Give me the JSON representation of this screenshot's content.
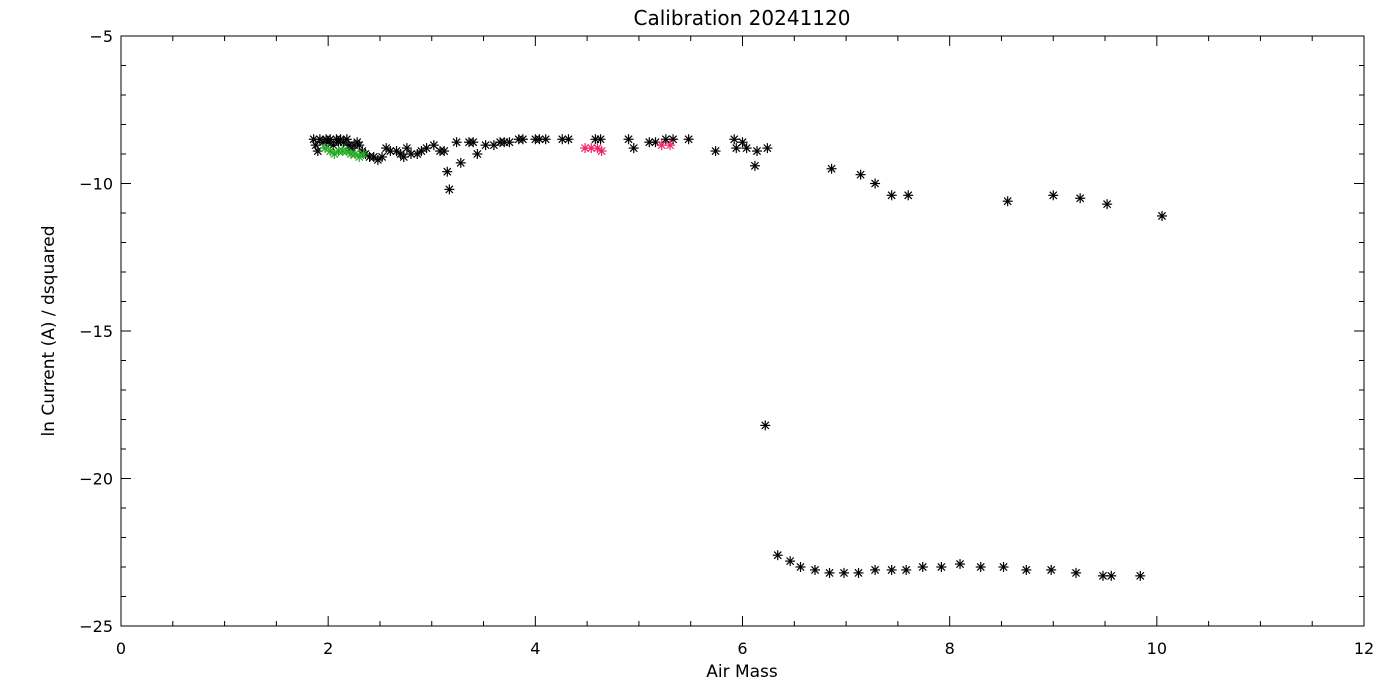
{
  "chart_data": {
    "type": "scatter",
    "title": "Calibration  20241120",
    "xlabel": "Air Mass",
    "ylabel": "ln Current (A) / dsquared",
    "xlim": [
      0,
      12
    ],
    "ylim": [
      -25,
      -5
    ],
    "x_ticks": [
      0,
      2,
      4,
      6,
      8,
      10,
      12
    ],
    "x_tick_labels": [
      "0",
      "2",
      "4",
      "6",
      "8",
      "10",
      "12"
    ],
    "y_ticks": [
      -25,
      -20,
      -15,
      -10,
      -5
    ],
    "y_tick_labels": [
      "−25",
      "−20",
      "−15",
      "−10",
      "−5"
    ],
    "x_minor_step": 0.5,
    "y_minor_step": 1,
    "grid": false,
    "marker": "asterisk",
    "series": [
      {
        "color": "#000000",
        "points": [
          [
            1.86,
            -8.5
          ],
          [
            1.88,
            -8.7
          ],
          [
            1.9,
            -8.9
          ],
          [
            1.92,
            -8.5
          ],
          [
            1.95,
            -8.6
          ],
          [
            1.98,
            -8.5
          ],
          [
            2.0,
            -8.6
          ],
          [
            2.02,
            -8.5
          ],
          [
            2.05,
            -8.7
          ],
          [
            2.08,
            -8.5
          ],
          [
            2.1,
            -8.6
          ],
          [
            2.12,
            -8.5
          ],
          [
            2.15,
            -8.6
          ],
          [
            2.18,
            -8.5
          ],
          [
            2.2,
            -8.7
          ],
          [
            2.22,
            -8.8
          ],
          [
            2.25,
            -8.7
          ],
          [
            2.28,
            -8.6
          ],
          [
            2.3,
            -8.7
          ],
          [
            2.33,
            -8.9
          ],
          [
            2.36,
            -9.0
          ],
          [
            2.4,
            -9.1
          ],
          [
            2.44,
            -9.1
          ],
          [
            2.48,
            -9.2
          ],
          [
            2.52,
            -9.1
          ],
          [
            2.56,
            -8.8
          ],
          [
            2.6,
            -8.9
          ],
          [
            2.66,
            -8.9
          ],
          [
            2.7,
            -9.0
          ],
          [
            2.73,
            -9.1
          ],
          [
            2.76,
            -8.8
          ],
          [
            2.8,
            -9.0
          ],
          [
            2.86,
            -9.0
          ],
          [
            2.9,
            -8.9
          ],
          [
            2.95,
            -8.8
          ],
          [
            3.02,
            -8.7
          ],
          [
            3.08,
            -8.9
          ],
          [
            3.12,
            -8.9
          ],
          [
            3.15,
            -9.6
          ],
          [
            3.17,
            -10.2
          ],
          [
            3.24,
            -8.6
          ],
          [
            3.28,
            -9.3
          ],
          [
            3.36,
            -8.6
          ],
          [
            3.4,
            -8.6
          ],
          [
            3.44,
            -9.0
          ],
          [
            3.52,
            -8.7
          ],
          [
            3.6,
            -8.7
          ],
          [
            3.66,
            -8.6
          ],
          [
            3.7,
            -8.6
          ],
          [
            3.75,
            -8.6
          ],
          [
            3.84,
            -8.5
          ],
          [
            3.88,
            -8.5
          ],
          [
            4.0,
            -8.5
          ],
          [
            4.04,
            -8.5
          ],
          [
            4.1,
            -8.5
          ],
          [
            4.26,
            -8.5
          ],
          [
            4.32,
            -8.5
          ],
          [
            4.58,
            -8.5
          ],
          [
            4.63,
            -8.5
          ],
          [
            4.9,
            -8.5
          ],
          [
            4.95,
            -8.8
          ],
          [
            5.1,
            -8.6
          ],
          [
            5.16,
            -8.6
          ],
          [
            5.26,
            -8.5
          ],
          [
            5.33,
            -8.5
          ],
          [
            5.48,
            -8.5
          ],
          [
            5.74,
            -8.9
          ],
          [
            5.92,
            -8.5
          ],
          [
            5.94,
            -8.8
          ],
          [
            6.0,
            -8.6
          ],
          [
            6.04,
            -8.8
          ],
          [
            6.12,
            -9.4
          ],
          [
            6.14,
            -8.9
          ],
          [
            6.24,
            -8.8
          ],
          [
            6.22,
            -18.2
          ],
          [
            6.86,
            -9.5
          ],
          [
            7.14,
            -9.7
          ],
          [
            7.28,
            -10.0
          ],
          [
            7.44,
            -10.4
          ],
          [
            7.6,
            -10.4
          ],
          [
            8.56,
            -10.6
          ],
          [
            9.0,
            -10.4
          ],
          [
            9.26,
            -10.5
          ],
          [
            9.52,
            -10.7
          ],
          [
            10.05,
            -11.1
          ],
          [
            6.34,
            -22.6
          ],
          [
            6.46,
            -22.8
          ],
          [
            6.56,
            -23.0
          ],
          [
            6.7,
            -23.1
          ],
          [
            6.84,
            -23.2
          ],
          [
            6.98,
            -23.2
          ],
          [
            7.12,
            -23.2
          ],
          [
            7.28,
            -23.1
          ],
          [
            7.44,
            -23.1
          ],
          [
            7.58,
            -23.1
          ],
          [
            7.74,
            -23.0
          ],
          [
            7.92,
            -23.0
          ],
          [
            8.1,
            -22.9
          ],
          [
            8.3,
            -23.0
          ],
          [
            8.52,
            -23.0
          ],
          [
            8.74,
            -23.1
          ],
          [
            8.98,
            -23.1
          ],
          [
            9.22,
            -23.2
          ],
          [
            9.48,
            -23.3
          ],
          [
            9.56,
            -23.3
          ],
          [
            9.84,
            -23.3
          ]
        ]
      },
      {
        "color": "#22aa22",
        "points": [
          [
            1.97,
            -8.8
          ],
          [
            2.02,
            -8.9
          ],
          [
            2.06,
            -9.0
          ],
          [
            2.1,
            -8.9
          ],
          [
            2.14,
            -8.9
          ],
          [
            2.18,
            -8.9
          ],
          [
            2.22,
            -9.0
          ],
          [
            2.26,
            -9.0
          ],
          [
            2.3,
            -9.1
          ],
          [
            2.34,
            -9.0
          ]
        ]
      },
      {
        "color": "#ee2266",
        "points": [
          [
            4.48,
            -8.8
          ],
          [
            4.54,
            -8.8
          ],
          [
            4.6,
            -8.8
          ],
          [
            4.64,
            -8.9
          ],
          [
            5.22,
            -8.7
          ],
          [
            5.3,
            -8.7
          ]
        ]
      }
    ]
  }
}
